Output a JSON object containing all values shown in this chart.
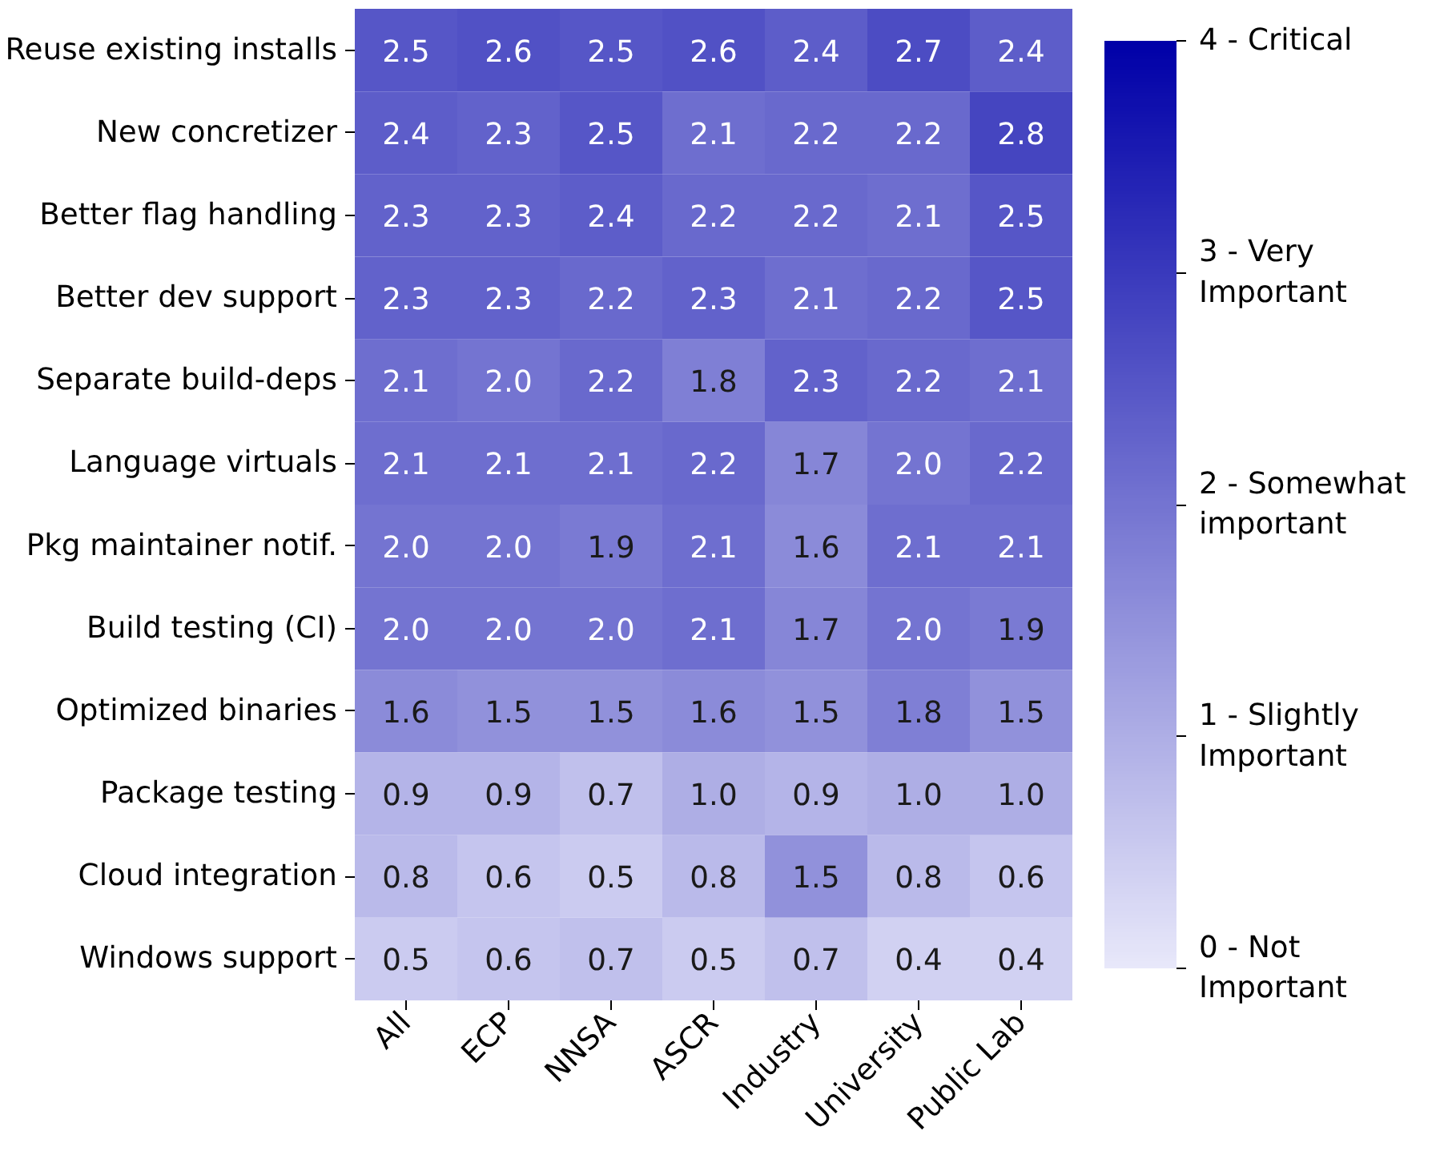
{
  "chart_data": {
    "type": "heatmap",
    "categories": [
      "All",
      "ECP",
      "NNSA",
      "ASCR",
      "Industry",
      "University",
      "Public Lab"
    ],
    "y_categories": [
      "Reuse existing installs",
      "New concretizer",
      "Better flag handling",
      "Better dev support",
      "Separate build-deps",
      "Language virtuals",
      "Pkg maintainer notif.",
      "Build testing (CI)",
      "Optimized binaries",
      "Package testing",
      "Cloud integration",
      "Windows support"
    ],
    "cells": [
      [
        2.5,
        2.6,
        2.5,
        2.6,
        2.4,
        2.7,
        2.4
      ],
      [
        2.4,
        2.3,
        2.5,
        2.1,
        2.2,
        2.2,
        2.8
      ],
      [
        2.3,
        2.3,
        2.4,
        2.2,
        2.2,
        2.1,
        2.5
      ],
      [
        2.3,
        2.3,
        2.2,
        2.3,
        2.1,
        2.2,
        2.5
      ],
      [
        2.1,
        2.0,
        2.2,
        1.8,
        2.3,
        2.2,
        2.1
      ],
      [
        2.1,
        2.1,
        2.1,
        2.2,
        1.7,
        2.0,
        2.2
      ],
      [
        2.0,
        2.0,
        1.9,
        2.1,
        1.6,
        2.1,
        2.1
      ],
      [
        2.0,
        2.0,
        2.0,
        2.1,
        1.7,
        2.0,
        1.9
      ],
      [
        1.6,
        1.5,
        1.5,
        1.6,
        1.5,
        1.8,
        1.5
      ],
      [
        0.9,
        0.9,
        0.7,
        1.0,
        0.9,
        1.0,
        1.0
      ],
      [
        0.8,
        0.6,
        0.5,
        0.8,
        1.5,
        0.8,
        0.6
      ],
      [
        0.5,
        0.6,
        0.7,
        0.5,
        0.7,
        0.4,
        0.4
      ]
    ],
    "cell_labels": [
      [
        "2.5",
        "2.6",
        "2.5",
        "2.6",
        "2.4",
        "2.7",
        "2.4"
      ],
      [
        "2.4",
        "2.3",
        "2.5",
        "2.1",
        "2.2",
        "2.2",
        "2.8"
      ],
      [
        "2.3",
        "2.3",
        "2.4",
        "2.2",
        "2.2",
        "2.1",
        "2.5"
      ],
      [
        "2.3",
        "2.3",
        "2.2",
        "2.3",
        "2.1",
        "2.2",
        "2.5"
      ],
      [
        "2.1",
        "2.0",
        "2.2",
        "1.8",
        "2.3",
        "2.2",
        "2.1"
      ],
      [
        "2.1",
        "2.1",
        "2.1",
        "2.2",
        "1.7",
        "2.0",
        "2.2"
      ],
      [
        "2.0",
        "2.0",
        "1.9",
        "2.1",
        "1.6",
        "2.1",
        "2.1"
      ],
      [
        "2.0",
        "2.0",
        "2.0",
        "2.1",
        "1.7",
        "2.0",
        "1.9"
      ],
      [
        "1.6",
        "1.5",
        "1.5",
        "1.6",
        "1.5",
        "1.8",
        "1.5"
      ],
      [
        "0.9",
        "0.9",
        "0.7",
        "1.0",
        "0.9",
        "1.0",
        "1.0"
      ],
      [
        "0.8",
        "0.6",
        "0.5",
        "0.8",
        "1.5",
        "0.8",
        "0.6"
      ],
      [
        "0.5",
        "0.6",
        "0.7",
        "0.5",
        "0.7",
        "0.4",
        "0.4"
      ]
    ],
    "colors": [
      "#e8e8fa",
      "#0000a8"
    ],
    "clim": [
      0,
      4
    ],
    "cticks": [
      {
        "value": 0,
        "label": "0 - Not\nImportant"
      },
      {
        "value": 1,
        "label": "1 - Slightly\nImportant"
      },
      {
        "value": 2,
        "label": "2 - Somewhat\nimportant"
      },
      {
        "value": 3,
        "label": "3 - Very\nImportant"
      },
      {
        "value": 4,
        "label": "4 - Critical"
      }
    ]
  }
}
